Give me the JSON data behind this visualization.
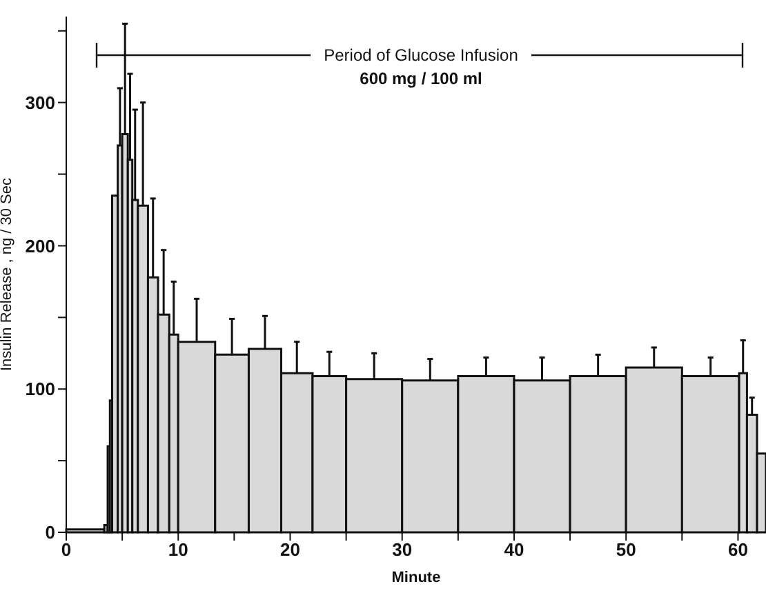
{
  "chart_data": {
    "type": "histogram",
    "xlabel": "Minute",
    "ylabel": "Insulin Release , ng / 30 Sec",
    "bins": [
      0,
      3.4,
      3.7,
      3.9,
      4.1,
      4.6,
      5.0,
      5.5,
      5.9,
      6.4,
      7.3,
      8.2,
      9.2,
      10,
      13.3,
      16.3,
      19.2,
      22,
      25,
      30,
      35,
      40,
      45,
      50,
      55,
      60.1,
      60.8,
      61.7,
      62.5
    ],
    "values": [
      2,
      5,
      60,
      92,
      235,
      270,
      278,
      260,
      232,
      228,
      178,
      152,
      138,
      133,
      124,
      128,
      111,
      109,
      107,
      106,
      109,
      106,
      109,
      115,
      109,
      111,
      82,
      55
    ],
    "errors": [
      null,
      null,
      null,
      null,
      null,
      [
        270,
        310
      ],
      [
        278,
        355
      ],
      [
        260,
        320
      ],
      [
        232,
        295
      ],
      [
        228,
        300
      ],
      [
        178,
        233
      ],
      [
        152,
        197
      ],
      [
        138,
        175
      ],
      [
        133,
        163
      ],
      [
        124,
        149
      ],
      [
        128,
        151
      ],
      [
        111,
        133
      ],
      [
        109,
        126
      ],
      [
        107,
        125
      ],
      [
        106,
        121
      ],
      [
        109,
        122
      ],
      [
        106,
        122
      ],
      [
        109,
        124
      ],
      [
        115,
        129
      ],
      [
        109,
        122
      ],
      [
        111,
        134
      ],
      [
        82,
        94
      ],
      null
    ],
    "color": "#d9d9d9",
    "xlim": [
      0,
      62.5
    ],
    "xticks": [
      0,
      {
        "value": 5,
        "label": null
      },
      10,
      {
        "value": 15,
        "label": null
      },
      20,
      {
        "value": 25,
        "label": null
      },
      30,
      {
        "value": 35,
        "label": null
      },
      40,
      {
        "value": 45,
        "label": null
      },
      50,
      {
        "value": 55,
        "label": null
      },
      60
    ],
    "ylim": [
      0,
      360
    ],
    "yticks": [
      0,
      {
        "value": 50,
        "label": null
      },
      100,
      {
        "value": 150,
        "label": null
      },
      200,
      {
        "value": 250,
        "label": null
      },
      300,
      {
        "value": 350,
        "label": null
      }
    ],
    "grid": false,
    "annotations": [
      "Period of Glucose Infusion",
      "600 mg / 100 ml"
    ]
  }
}
